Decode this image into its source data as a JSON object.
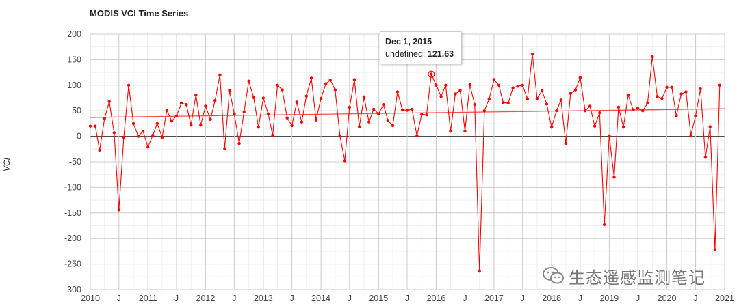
{
  "chart_data": {
    "type": "line",
    "title": "MODIS VCI Time Series",
    "ylabel": "VCI",
    "ylim": [
      -300,
      200
    ],
    "y_ticks": [
      200,
      150,
      100,
      50,
      0,
      -50,
      -100,
      -150,
      -200,
      -250,
      -300
    ],
    "x_range": [
      "2010-01-01",
      "2021-01-01"
    ],
    "x_ticks": [
      {
        "date": "2010-01-01",
        "label": "2010"
      },
      {
        "date": "2010-07-01",
        "label": "J"
      },
      {
        "date": "2011-01-01",
        "label": "2011"
      },
      {
        "date": "2011-07-01",
        "label": "J"
      },
      {
        "date": "2012-01-01",
        "label": "2012"
      },
      {
        "date": "2012-07-01",
        "label": "J"
      },
      {
        "date": "2013-01-01",
        "label": "2013"
      },
      {
        "date": "2013-07-01",
        "label": "J"
      },
      {
        "date": "2014-01-01",
        "label": "2014"
      },
      {
        "date": "2014-07-01",
        "label": "J"
      },
      {
        "date": "2015-01-01",
        "label": "2015"
      },
      {
        "date": "2015-07-01",
        "label": "J"
      },
      {
        "date": "2016-01-01",
        "label": "2016"
      },
      {
        "date": "2016-07-01",
        "label": "J"
      },
      {
        "date": "2017-01-01",
        "label": "2017"
      },
      {
        "date": "2017-07-01",
        "label": "J"
      },
      {
        "date": "2018-01-01",
        "label": "2018"
      },
      {
        "date": "2018-07-01",
        "label": "J"
      },
      {
        "date": "2019-01-01",
        "label": "2019"
      },
      {
        "date": "2019-07-01",
        "label": "J"
      },
      {
        "date": "2020-01-01",
        "label": "2020"
      },
      {
        "date": "2020-07-01",
        "label": "J"
      },
      {
        "date": "2021-01-01",
        "label": "2021"
      }
    ],
    "grid": true,
    "legend": "none",
    "series": [
      {
        "color": "#ff0000",
        "points": [
          {
            "x": "2010-01-01",
            "y": 20
          },
          {
            "x": "2010-02-01",
            "y": 20
          },
          {
            "x": "2010-03-01",
            "y": -27
          },
          {
            "x": "2010-04-01",
            "y": 35
          },
          {
            "x": "2010-05-01",
            "y": 68
          },
          {
            "x": "2010-06-01",
            "y": 7
          },
          {
            "x": "2010-07-01",
            "y": -144
          },
          {
            "x": "2010-08-01",
            "y": -2
          },
          {
            "x": "2010-09-01",
            "y": 100
          },
          {
            "x": "2010-10-01",
            "y": 25
          },
          {
            "x": "2010-11-01",
            "y": 0
          },
          {
            "x": "2010-12-01",
            "y": 10
          },
          {
            "x": "2011-01-01",
            "y": -21
          },
          {
            "x": "2011-02-01",
            "y": 2
          },
          {
            "x": "2011-03-01",
            "y": 25
          },
          {
            "x": "2011-04-01",
            "y": -2
          },
          {
            "x": "2011-05-01",
            "y": 51
          },
          {
            "x": "2011-06-01",
            "y": 30
          },
          {
            "x": "2011-07-01",
            "y": 40
          },
          {
            "x": "2011-08-01",
            "y": 65
          },
          {
            "x": "2011-09-01",
            "y": 62
          },
          {
            "x": "2011-10-01",
            "y": 22
          },
          {
            "x": "2011-11-01",
            "y": 81
          },
          {
            "x": "2011-12-01",
            "y": 22
          },
          {
            "x": "2012-01-01",
            "y": 59
          },
          {
            "x": "2012-02-01",
            "y": 33
          },
          {
            "x": "2012-03-01",
            "y": 70
          },
          {
            "x": "2012-04-01",
            "y": 120
          },
          {
            "x": "2012-05-01",
            "y": -24
          },
          {
            "x": "2012-06-01",
            "y": 90
          },
          {
            "x": "2012-07-01",
            "y": 44
          },
          {
            "x": "2012-08-01",
            "y": -14
          },
          {
            "x": "2012-09-01",
            "y": 48
          },
          {
            "x": "2012-10-01",
            "y": 108
          },
          {
            "x": "2012-11-01",
            "y": 76
          },
          {
            "x": "2012-12-01",
            "y": 18
          },
          {
            "x": "2013-01-01",
            "y": 75
          },
          {
            "x": "2013-02-01",
            "y": 44
          },
          {
            "x": "2013-03-01",
            "y": 2
          },
          {
            "x": "2013-04-01",
            "y": 100
          },
          {
            "x": "2013-05-01",
            "y": 91
          },
          {
            "x": "2013-06-01",
            "y": 36
          },
          {
            "x": "2013-07-01",
            "y": 21
          },
          {
            "x": "2013-08-01",
            "y": 67
          },
          {
            "x": "2013-09-01",
            "y": 28
          },
          {
            "x": "2013-10-01",
            "y": 79
          },
          {
            "x": "2013-11-01",
            "y": 114
          },
          {
            "x": "2013-12-01",
            "y": 32
          },
          {
            "x": "2014-01-01",
            "y": 74
          },
          {
            "x": "2014-02-01",
            "y": 103
          },
          {
            "x": "2014-03-01",
            "y": 110
          },
          {
            "x": "2014-04-01",
            "y": 91
          },
          {
            "x": "2014-05-01",
            "y": 1
          },
          {
            "x": "2014-06-01",
            "y": -48
          },
          {
            "x": "2014-07-01",
            "y": 57
          },
          {
            "x": "2014-08-01",
            "y": 111
          },
          {
            "x": "2014-09-01",
            "y": 19
          },
          {
            "x": "2014-10-01",
            "y": 77
          },
          {
            "x": "2014-11-01",
            "y": 28
          },
          {
            "x": "2014-12-01",
            "y": 53
          },
          {
            "x": "2015-01-01",
            "y": 44
          },
          {
            "x": "2015-02-01",
            "y": 62
          },
          {
            "x": "2015-03-01",
            "y": 31
          },
          {
            "x": "2015-04-01",
            "y": 21
          },
          {
            "x": "2015-05-01",
            "y": 87
          },
          {
            "x": "2015-06-01",
            "y": 52
          },
          {
            "x": "2015-07-01",
            "y": 51
          },
          {
            "x": "2015-08-01",
            "y": 53
          },
          {
            "x": "2015-09-01",
            "y": 1
          },
          {
            "x": "2015-10-01",
            "y": 43
          },
          {
            "x": "2015-11-01",
            "y": 42
          },
          {
            "x": "2015-12-01",
            "y": 121.63
          },
          {
            "x": "2016-01-01",
            "y": 100
          },
          {
            "x": "2016-02-01",
            "y": 78
          },
          {
            "x": "2016-03-01",
            "y": 100
          },
          {
            "x": "2016-04-01",
            "y": 10
          },
          {
            "x": "2016-05-01",
            "y": 83
          },
          {
            "x": "2016-06-01",
            "y": 90
          },
          {
            "x": "2016-07-01",
            "y": 10
          },
          {
            "x": "2016-08-01",
            "y": 101
          },
          {
            "x": "2016-09-01",
            "y": 62
          },
          {
            "x": "2016-10-01",
            "y": -264
          },
          {
            "x": "2016-11-01",
            "y": 50
          },
          {
            "x": "2016-12-01",
            "y": 73
          },
          {
            "x": "2017-01-01",
            "y": 111
          },
          {
            "x": "2017-02-01",
            "y": 100
          },
          {
            "x": "2017-03-01",
            "y": 66
          },
          {
            "x": "2017-04-01",
            "y": 65
          },
          {
            "x": "2017-05-01",
            "y": 95
          },
          {
            "x": "2017-06-01",
            "y": 98
          },
          {
            "x": "2017-07-01",
            "y": 100
          },
          {
            "x": "2017-08-01",
            "y": 73
          },
          {
            "x": "2017-09-01",
            "y": 161
          },
          {
            "x": "2017-10-01",
            "y": 74
          },
          {
            "x": "2017-11-01",
            "y": 89
          },
          {
            "x": "2017-12-01",
            "y": 63
          },
          {
            "x": "2018-01-01",
            "y": 18
          },
          {
            "x": "2018-02-01",
            "y": 50
          },
          {
            "x": "2018-03-01",
            "y": 71
          },
          {
            "x": "2018-04-01",
            "y": -14
          },
          {
            "x": "2018-05-01",
            "y": 84
          },
          {
            "x": "2018-06-01",
            "y": 91
          },
          {
            "x": "2018-07-01",
            "y": 115
          },
          {
            "x": "2018-08-01",
            "y": 50
          },
          {
            "x": "2018-09-01",
            "y": 59
          },
          {
            "x": "2018-10-01",
            "y": 20
          },
          {
            "x": "2018-11-01",
            "y": 46
          },
          {
            "x": "2018-12-01",
            "y": -173
          },
          {
            "x": "2019-01-01",
            "y": 1
          },
          {
            "x": "2019-02-01",
            "y": -80
          },
          {
            "x": "2019-03-01",
            "y": 57
          },
          {
            "x": "2019-04-01",
            "y": 18
          },
          {
            "x": "2019-05-01",
            "y": 81
          },
          {
            "x": "2019-06-01",
            "y": 52
          },
          {
            "x": "2019-07-01",
            "y": 55
          },
          {
            "x": "2019-08-01",
            "y": 50
          },
          {
            "x": "2019-09-01",
            "y": 65
          },
          {
            "x": "2019-10-01",
            "y": 156
          },
          {
            "x": "2019-11-01",
            "y": 78
          },
          {
            "x": "2019-12-01",
            "y": 74
          },
          {
            "x": "2020-01-01",
            "y": 96
          },
          {
            "x": "2020-02-01",
            "y": 96
          },
          {
            "x": "2020-03-01",
            "y": 40
          },
          {
            "x": "2020-04-01",
            "y": 83
          },
          {
            "x": "2020-05-01",
            "y": 87
          },
          {
            "x": "2020-06-01",
            "y": 2
          },
          {
            "x": "2020-07-01",
            "y": 40
          },
          {
            "x": "2020-08-01",
            "y": 93
          },
          {
            "x": "2020-09-01",
            "y": -41
          },
          {
            "x": "2020-10-01",
            "y": 19
          },
          {
            "x": "2020-11-01",
            "y": -222
          },
          {
            "x": "2020-12-01",
            "y": 100
          }
        ]
      }
    ],
    "trendline": {
      "color": "#ff0000",
      "start": {
        "x": "2010-01-01",
        "y": 37
      },
      "end": {
        "x": "2021-01-01",
        "y": 54
      }
    },
    "tooltip": {
      "date": "Dec 1, 2015",
      "label": "undefined:",
      "value": "121.63",
      "point": {
        "x": "2015-12-01",
        "y": 121.63
      }
    }
  },
  "watermark": {
    "text": "生态遥感监测笔记",
    "icon": "wechat-icon"
  }
}
